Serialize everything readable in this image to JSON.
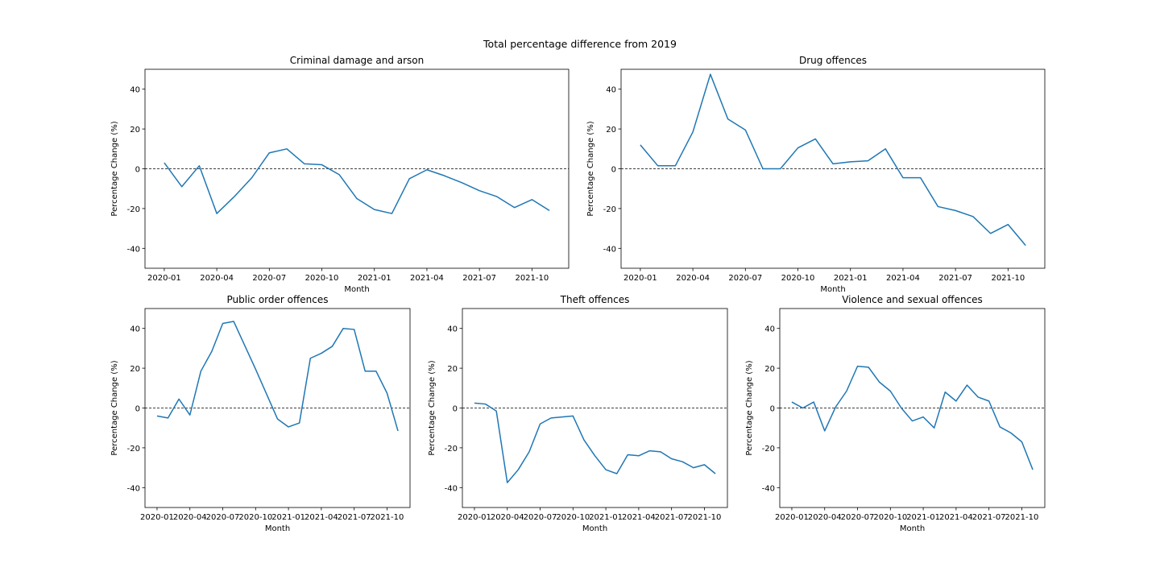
{
  "figure_title": "Total percentage difference from 2019",
  "colors": {
    "line": "#1f77b4",
    "zero_line": "#000000",
    "axes": "#000000"
  },
  "chart_data": [
    {
      "type": "line",
      "title": "Criminal damage and arson",
      "xlabel": "Month",
      "ylabel": "Percentage Change (%)",
      "ylim": [
        -50,
        50
      ],
      "yticks": [
        -40,
        -20,
        0,
        20,
        40
      ],
      "xticks": [
        "2020-01",
        "2020-04",
        "2020-07",
        "2020-10",
        "2021-01",
        "2021-04",
        "2021-07",
        "2021-10"
      ],
      "reference_line": {
        "y": 0,
        "style": "dashed"
      },
      "x": [
        "2020-01",
        "2020-02",
        "2020-03",
        "2020-04",
        "2020-05",
        "2020-06",
        "2020-07",
        "2020-08",
        "2020-09",
        "2020-10",
        "2020-11",
        "2020-12",
        "2021-01",
        "2021-02",
        "2021-03",
        "2021-04",
        "2021-05",
        "2021-06",
        "2021-07",
        "2021-08",
        "2021-09",
        "2021-10",
        "2021-11"
      ],
      "values": [
        3,
        -9,
        1.5,
        -22.5,
        -14,
        -4.5,
        8,
        10,
        2.5,
        2,
        -3,
        -15,
        -20.5,
        -22.5,
        -5,
        -0.5,
        -3.5,
        -7,
        -11,
        -14,
        -19.5,
        -15.5,
        -21
      ]
    },
    {
      "type": "line",
      "title": "Drug offences",
      "xlabel": "Month",
      "ylabel": "Percentage Change (%)",
      "ylim": [
        -50,
        50
      ],
      "yticks": [
        -40,
        -20,
        0,
        20,
        40
      ],
      "xticks": [
        "2020-01",
        "2020-04",
        "2020-07",
        "2020-10",
        "2021-01",
        "2021-04",
        "2021-07",
        "2021-10"
      ],
      "reference_line": {
        "y": 0,
        "style": "dashed"
      },
      "x": [
        "2020-01",
        "2020-02",
        "2020-03",
        "2020-04",
        "2020-05",
        "2020-06",
        "2020-07",
        "2020-08",
        "2020-09",
        "2020-10",
        "2020-11",
        "2020-12",
        "2021-01",
        "2021-02",
        "2021-03",
        "2021-04",
        "2021-05",
        "2021-06",
        "2021-07",
        "2021-08",
        "2021-09",
        "2021-10",
        "2021-11"
      ],
      "values": [
        12,
        1.5,
        1.5,
        18.5,
        47.5,
        25,
        19.5,
        0,
        0,
        10.5,
        15,
        2.5,
        3.5,
        4,
        10,
        -4.5,
        -4.5,
        -19,
        -21,
        -24,
        -32.5,
        -28,
        -38.5
      ]
    },
    {
      "type": "line",
      "title": "Public order offences",
      "xlabel": "Month",
      "ylabel": "Percentage Change (%)",
      "ylim": [
        -50,
        50
      ],
      "yticks": [
        -40,
        -20,
        0,
        20,
        40
      ],
      "xticks": [
        "2020-01",
        "2020-04",
        "2020-07",
        "2020-10",
        "2021-01",
        "2021-04",
        "2021-07",
        "2021-10"
      ],
      "reference_line": {
        "y": 0,
        "style": "dashed"
      },
      "x": [
        "2020-01",
        "2020-02",
        "2020-03",
        "2020-04",
        "2020-05",
        "2020-06",
        "2020-07",
        "2020-08",
        "2020-09",
        "2020-10",
        "2020-11",
        "2020-12",
        "2021-01",
        "2021-02",
        "2021-03",
        "2021-04",
        "2021-05",
        "2021-06",
        "2021-07",
        "2021-08",
        "2021-09",
        "2021-10",
        "2021-11"
      ],
      "values": [
        -4,
        -5,
        4.5,
        -3.5,
        18.5,
        28.5,
        42.5,
        43.5,
        31.5,
        19.5,
        7,
        -5.5,
        -9.5,
        -7.5,
        25,
        27.5,
        31,
        40,
        39.5,
        18.5,
        18.5,
        7.5,
        -11.5
      ]
    },
    {
      "type": "line",
      "title": "Theft offences",
      "xlabel": "Month",
      "ylabel": "Percentage Change (%)",
      "ylim": [
        -50,
        50
      ],
      "yticks": [
        -40,
        -20,
        0,
        20,
        40
      ],
      "xticks": [
        "2020-01",
        "2020-04",
        "2020-07",
        "2020-10",
        "2021-01",
        "2021-04",
        "2021-07",
        "2021-10"
      ],
      "reference_line": {
        "y": 0,
        "style": "dashed"
      },
      "x": [
        "2020-01",
        "2020-02",
        "2020-03",
        "2020-04",
        "2020-05",
        "2020-06",
        "2020-07",
        "2020-08",
        "2020-09",
        "2020-10",
        "2020-11",
        "2020-12",
        "2021-01",
        "2021-02",
        "2021-03",
        "2021-04",
        "2021-05",
        "2021-06",
        "2021-07",
        "2021-08",
        "2021-09",
        "2021-10",
        "2021-11"
      ],
      "values": [
        2.5,
        2,
        -1.5,
        -37.5,
        -31,
        -22,
        -8,
        -5,
        -4.5,
        -4,
        -16,
        -24,
        -31,
        -33,
        -23.5,
        -24,
        -21.5,
        -22,
        -25.5,
        -27,
        -30,
        -28.5,
        -33
      ]
    },
    {
      "type": "line",
      "title": "Violence and sexual offences",
      "xlabel": "Month",
      "ylabel": "Percentage Change (%)",
      "ylim": [
        -50,
        50
      ],
      "yticks": [
        -40,
        -20,
        0,
        20,
        40
      ],
      "xticks": [
        "2020-01",
        "2020-04",
        "2020-07",
        "2020-10",
        "2021-01",
        "2021-04",
        "2021-07",
        "2021-10"
      ],
      "reference_line": {
        "y": 0,
        "style": "dashed"
      },
      "x": [
        "2020-01",
        "2020-02",
        "2020-03",
        "2020-04",
        "2020-05",
        "2020-06",
        "2020-07",
        "2020-08",
        "2020-09",
        "2020-10",
        "2020-11",
        "2020-12",
        "2021-01",
        "2021-02",
        "2021-03",
        "2021-04",
        "2021-05",
        "2021-06",
        "2021-07",
        "2021-08",
        "2021-09",
        "2021-10",
        "2021-11"
      ],
      "values": [
        3,
        0,
        3,
        -11.5,
        0.5,
        8.5,
        21,
        20.5,
        13,
        8.5,
        0,
        -6.5,
        -4.5,
        -10,
        8,
        3.5,
        11.5,
        5.5,
        3.5,
        -9.5,
        -12.5,
        -17,
        -31
      ]
    }
  ]
}
